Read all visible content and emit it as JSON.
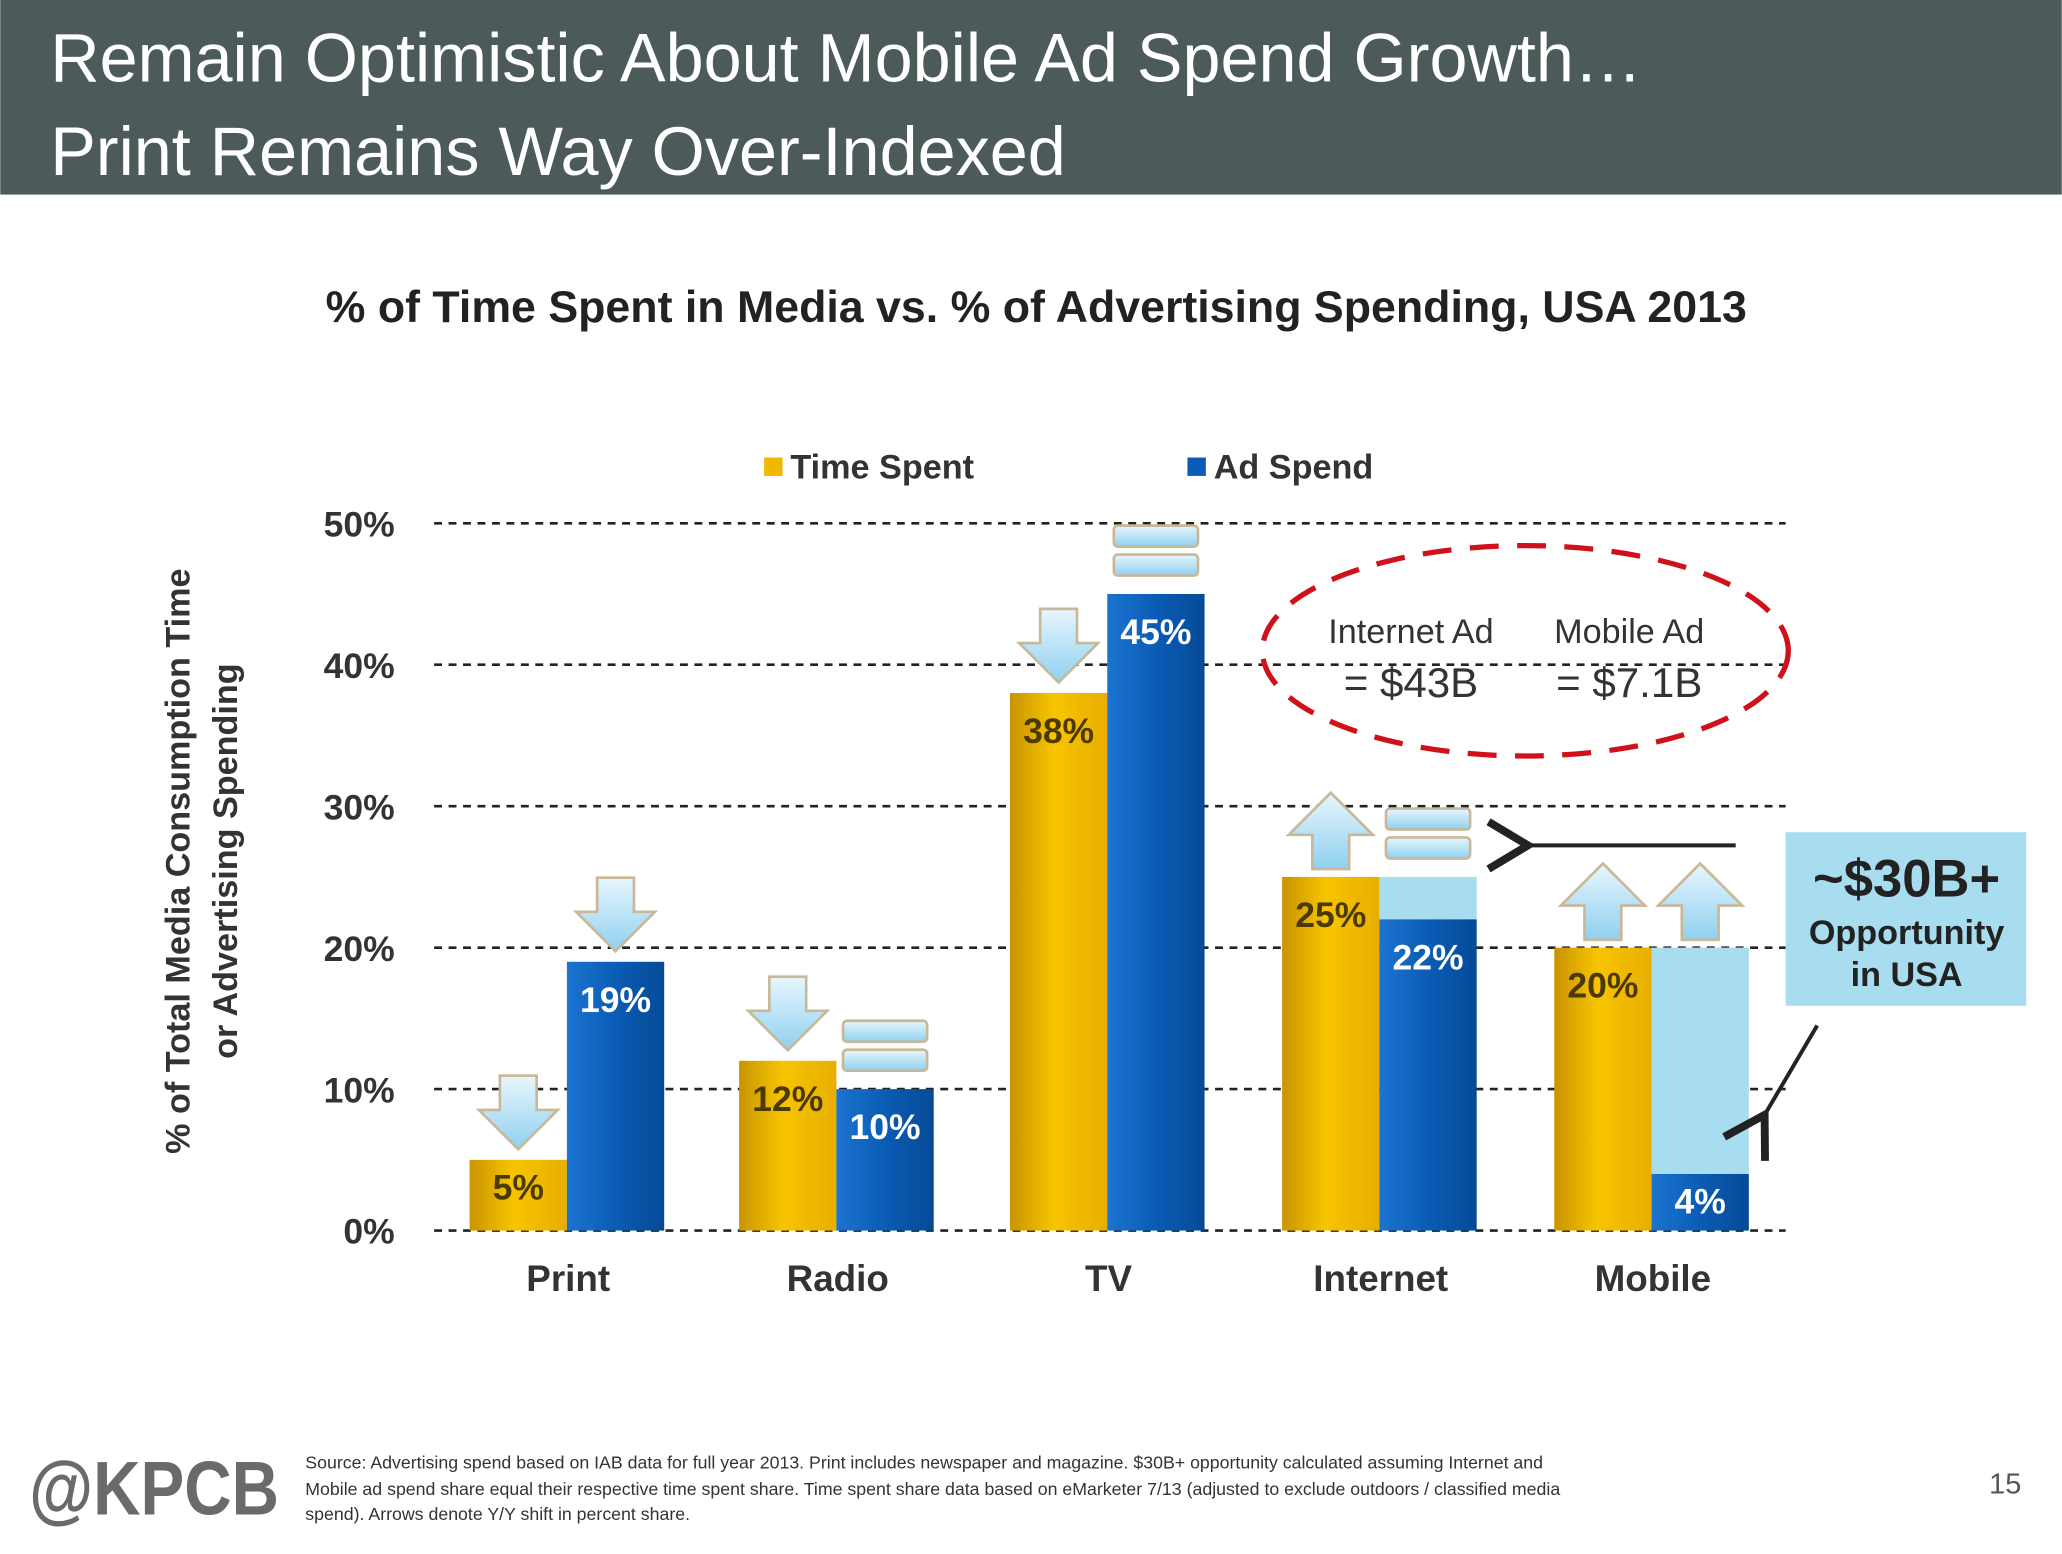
{
  "header": {
    "title_line1": "Remain Optimistic About Mobile Ad Spend Growth…",
    "title_line2": "Print Remains Way Over-Indexed",
    "background": "#4d5a5a"
  },
  "chart_data": {
    "type": "bar",
    "title": "% of Time Spent in Media vs. % of Advertising Spending, USA 2013",
    "ylabel_line1": "% of Total Media Consumption Time",
    "ylabel_line2": "or Advertising Spending",
    "ylim": [
      0,
      50
    ],
    "yticks": [
      "0%",
      "10%",
      "20%",
      "30%",
      "40%",
      "50%"
    ],
    "grid": true,
    "legend_position": "top",
    "categories": [
      "Print",
      "Radio",
      "TV",
      "Internet",
      "Mobile"
    ],
    "series": [
      {
        "name": "Time Spent",
        "color": "#f0b800",
        "values": [
          5,
          12,
          38,
          25,
          20
        ],
        "labels": [
          "5%",
          "12%",
          "38%",
          "25%",
          "20%"
        ],
        "yy_shift": [
          "down",
          "down",
          "down",
          "up",
          "up"
        ]
      },
      {
        "name": "Ad Spend",
        "color": "#0a5cb5",
        "values": [
          19,
          10,
          45,
          22,
          4
        ],
        "labels": [
          "19%",
          "10%",
          "45%",
          "22%",
          "4%"
        ],
        "yy_shift": [
          "down",
          "flat",
          "flat",
          "flat",
          "up"
        ]
      }
    ],
    "opportunity_gap": {
      "color": "#a8dcef",
      "categories": [
        "Internet",
        "Mobile"
      ],
      "to_values": [
        25,
        20
      ]
    },
    "annotations": {
      "internet_ad_label": "Internet Ad",
      "internet_ad_value": "= $43B",
      "mobile_ad_label": "Mobile Ad",
      "mobile_ad_value": "= $7.1B",
      "opportunity_amount": "~$30B+",
      "opportunity_line1": "Opportunity",
      "opportunity_line2": "in USA"
    }
  },
  "footer": {
    "logo": "@KPCB",
    "source_line1": "Source: Advertising spend based on IAB data for full year 2013. Print includes newspaper and magazine. $30B+ opportunity calculated assuming Internet and",
    "source_line2": "Mobile ad spend share equal their respective time spent share.  Time spent share data based on eMarketer 7/13 (adjusted to exclude outdoors / classified media",
    "source_line3": "spend). Arrows denote Y/Y shift in percent share.",
    "page_number": "15"
  }
}
